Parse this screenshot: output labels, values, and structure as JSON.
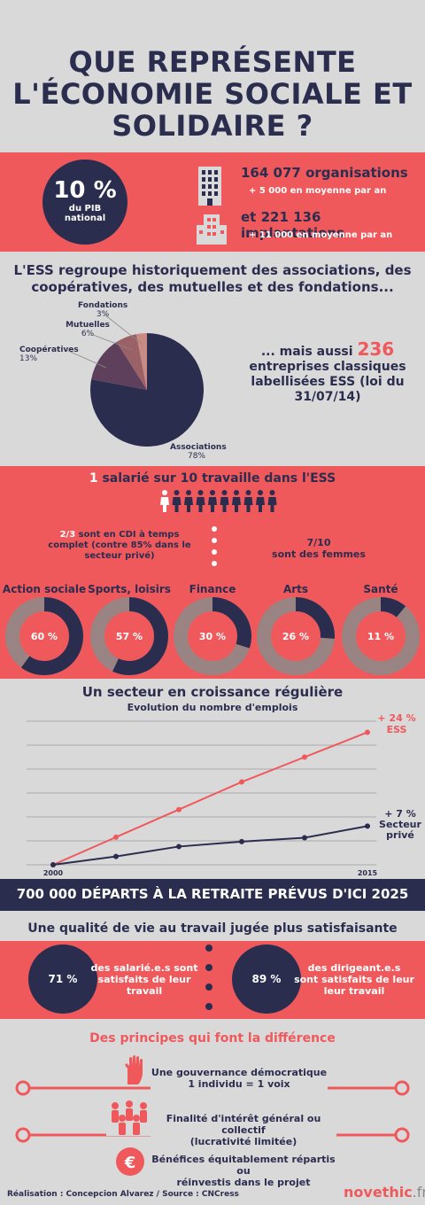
{
  "title": {
    "line1": "QUE REPRÉSENTE",
    "line2": "L'ÉCONOMIE SOCIALE ET",
    "line3": "SOLIDAIRE ?"
  },
  "pib": {
    "value": "10 %",
    "label1": "du PIB",
    "label2": "national"
  },
  "orgs": {
    "count": "164 077 organisations",
    "growth": "+ 5 000 en moyenne par an",
    "implant": "et 221 136 implantations",
    "implant_growth": "+ 11 000 en moyenne par an"
  },
  "ess_group": {
    "line1": "L'ESS regroupe historiquement des associations, des",
    "line2": "coopératives, des mutuelles et des fondations..."
  },
  "chart_data": [
    {
      "type": "pie",
      "slices": [
        {
          "label": "Associations",
          "value": 78,
          "display": "78%"
        },
        {
          "label": "Coopératives",
          "value": 13,
          "display": "13%"
        },
        {
          "label": "Mutuelles",
          "value": 6,
          "display": "6%"
        },
        {
          "label": "Fondations",
          "value": 3,
          "display": "3%"
        }
      ],
      "colors": [
        "#2b2d4f",
        "#5e3f5c",
        "#9a6167",
        "#c98a84"
      ]
    },
    {
      "type": "line",
      "title": "Un secteur en croissance régulière",
      "subtitle": "Evolution du nombre d'emplois",
      "x": [
        "2000",
        "",
        "",
        "",
        "",
        "2015"
      ],
      "x_labels_shown": [
        "2000",
        "2015"
      ],
      "series": [
        {
          "name": "ESS",
          "values": [
            0,
            5,
            10,
            15,
            19.5,
            24
          ]
        },
        {
          "name": "Secteur privé",
          "values": [
            0,
            1.5,
            3.3,
            4.2,
            4.9,
            7
          ]
        }
      ],
      "annotations": [
        "+ 24 %",
        "ESS",
        "+ 7 %",
        "Secteur",
        "privé"
      ],
      "ylim": [
        0,
        26
      ],
      "grid": true,
      "colors": {
        "ESS": "#f0595c",
        "Secteur privé": "#2b2d4f"
      }
    }
  ],
  "pie_labels": {
    "fondations": "Fondations",
    "fondations_pct": "3%",
    "mutuelles": "Mutuelles",
    "mutuelles_pct": "6%",
    "cooperatives": "Coopératives",
    "cooperatives_pct": "13%",
    "associations": "Associations",
    "associations_pct": "78%"
  },
  "entreprises": {
    "prefix": "... mais aussi",
    "number": "236",
    "line2": "entreprises classiques",
    "line3": "labellisées ESS (loi du",
    "line4": "31/07/14)"
  },
  "salaries": {
    "count": "1",
    "text": "salarié sur 10 travaille dans l'ESS"
  },
  "cdi": {
    "fraction": "2/3",
    "line1": "sont en CDI à temps",
    "line2": "complet (contre 85% dans le",
    "line3": "secteur privé)"
  },
  "femmes": {
    "fraction": "7/10",
    "text": "sont des femmes"
  },
  "sectors": [
    {
      "label": "Action sociale",
      "value": 60,
      "display": "60 %"
    },
    {
      "label": "Sports, loisirs",
      "value": 57,
      "display": "57 %"
    },
    {
      "label": "Finance",
      "value": 30,
      "display": "30 %"
    },
    {
      "label": "Arts",
      "value": 26,
      "display": "26 %"
    },
    {
      "label": "Santé",
      "value": 11,
      "display": "11 %"
    }
  ],
  "retraite": "700 000 DÉPARTS À LA RETRAITE PRÉVUS D'ICI 2025",
  "qualite": {
    "title": "Une qualité de vie au travail jugée plus satisfaisante",
    "pct1": "71 %",
    "text1_l1": "des salarié.e.s sont",
    "text1_l2": "satisfaits de leur",
    "text1_l3": "travail",
    "pct2": "89 %",
    "text2_l1": "des dirigeant.e.s",
    "text2_l2": "sont satisfaits de leur",
    "text2_l3": "leur travail"
  },
  "principes": {
    "title": "Des principes qui font la différence",
    "p1_l1": "Une gouvernance démocratique",
    "p1_l2": "1 individu = 1 voix",
    "p2_l1": "Finalité d'intérêt général ou collectif",
    "p2_l2": "(lucrativité limitée)",
    "p3_l1": "Bénéfices équitablement répartis ou",
    "p3_l2": "réinvestis dans le projet"
  },
  "footer": {
    "credit": "Réalisation : Concepcion Alvarez / Source : CNCress",
    "brand_a": "novethic",
    "brand_b": ".fr"
  }
}
